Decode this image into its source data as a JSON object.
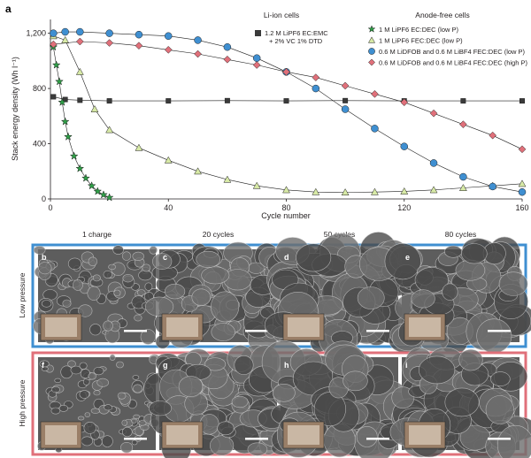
{
  "panel_a_label": "a",
  "chart_data": {
    "type": "line",
    "title": "",
    "xlabel": "Cycle number",
    "ylabel": "Stack energy density (Wh l⁻¹)",
    "xlim": [
      0,
      160
    ],
    "ylim": [
      0,
      1300
    ],
    "x_ticks": [
      "0",
      "40",
      "80",
      "120",
      "160"
    ],
    "y_ticks": [
      "0",
      "400",
      "800",
      "1,200"
    ],
    "legend_placement": "top-right",
    "legend_group_liion": "Li-ion cells",
    "legend_group_anodefree": "Anode-free cells",
    "series": [
      {
        "name": "1.2 M LiPF6 EC:EMC + 2% VC 1% DTD",
        "legend_line1": "1.2 M LiPF6 EC:EMC",
        "legend_line2": "+ 2% VC 1% DTD",
        "marker": "square",
        "color": "#3a3a3a",
        "x": [
          1,
          5,
          10,
          20,
          40,
          60,
          80,
          100,
          120,
          140,
          160
        ],
        "y": [
          740,
          720,
          715,
          710,
          710,
          712,
          710,
          712,
          710,
          710,
          710
        ]
      },
      {
        "name": "1 M LiPF6 EC:DEC (low P)",
        "marker": "star",
        "color": "#2e9e46",
        "x": [
          1,
          2,
          3,
          4,
          5,
          6,
          8,
          10,
          12,
          14,
          16,
          18,
          20
        ],
        "y": [
          1100,
          970,
          850,
          700,
          560,
          450,
          310,
          220,
          150,
          95,
          55,
          30,
          10
        ]
      },
      {
        "name": "1 M LiPF6 FEC:DEC (low P)",
        "marker": "triangle",
        "color": "#d7e9a6",
        "x": [
          1,
          5,
          10,
          15,
          20,
          30,
          40,
          50,
          60,
          70,
          80,
          90,
          100,
          110,
          120,
          130,
          140,
          150,
          160
        ],
        "y": [
          1180,
          1150,
          920,
          650,
          500,
          370,
          280,
          200,
          140,
          95,
          65,
          50,
          48,
          50,
          55,
          65,
          80,
          95,
          110
        ]
      },
      {
        "name": "0.6 M LiDFOB and 0.6 M LiBF4 FEC:DEC (low P)",
        "marker": "circle",
        "color": "#3f8fd1",
        "x": [
          1,
          5,
          10,
          20,
          30,
          40,
          50,
          60,
          70,
          80,
          90,
          100,
          110,
          120,
          130,
          140,
          150,
          160
        ],
        "y": [
          1200,
          1210,
          1210,
          1200,
          1190,
          1180,
          1150,
          1100,
          1020,
          920,
          800,
          650,
          510,
          380,
          260,
          160,
          90,
          50
        ]
      },
      {
        "name": "0.6 M LiDFOB and 0.6 M LiBF4 FEC:DEC (high P)",
        "marker": "diamond",
        "color": "#e0707a",
        "x": [
          1,
          10,
          20,
          30,
          40,
          50,
          60,
          70,
          80,
          90,
          100,
          110,
          120,
          130,
          140,
          150,
          160
        ],
        "y": [
          1120,
          1140,
          1130,
          1110,
          1080,
          1050,
          1010,
          970,
          920,
          880,
          820,
          760,
          700,
          620,
          540,
          460,
          360
        ]
      }
    ]
  },
  "micrographs": {
    "columns": [
      "1 charge",
      "20 cycles",
      "50 cycles",
      "80 cycles"
    ],
    "rows": [
      {
        "name": "Low pressure",
        "border_color": "#3f8fd1",
        "labels": [
          "b",
          "c",
          "d",
          "e"
        ]
      },
      {
        "name": "High pressure",
        "border_color": "#e0707a",
        "labels": [
          "f",
          "g",
          "h",
          "i"
        ]
      }
    ]
  }
}
